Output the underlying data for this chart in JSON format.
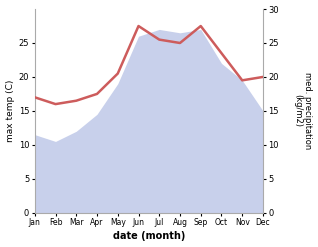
{
  "months": [
    "Jan",
    "Feb",
    "Mar",
    "Apr",
    "May",
    "Jun",
    "Jul",
    "Aug",
    "Sep",
    "Oct",
    "Nov",
    "Dec"
  ],
  "month_indices": [
    0,
    1,
    2,
    3,
    4,
    5,
    6,
    7,
    8,
    9,
    10,
    11
  ],
  "temperature": [
    11.5,
    10.5,
    12.0,
    14.5,
    19.0,
    26.0,
    27.0,
    26.5,
    27.0,
    22.0,
    19.5,
    15.0
  ],
  "precipitation": [
    17.0,
    16.0,
    16.5,
    17.5,
    20.5,
    27.5,
    25.5,
    25.0,
    27.5,
    23.5,
    19.5,
    20.0
  ],
  "temp_line_color": "#cd5c5c",
  "temp_fill_color": "#c8d0eb",
  "temp_fill_alpha": 1.0,
  "xlabel": "date (month)",
  "ylabel_left": "max temp (C)",
  "ylabel_right": "med. precipitation\n(kg/m2)",
  "ylim_left": [
    0,
    30
  ],
  "ylim_right": [
    0,
    30
  ],
  "yticks_left": [
    0,
    5,
    10,
    15,
    20,
    25
  ],
  "yticks_right": [
    0,
    5,
    10,
    15,
    20,
    25,
    30
  ],
  "background_color": "#ffffff",
  "linewidth": 1.8,
  "spine_color": "#aaaaaa"
}
